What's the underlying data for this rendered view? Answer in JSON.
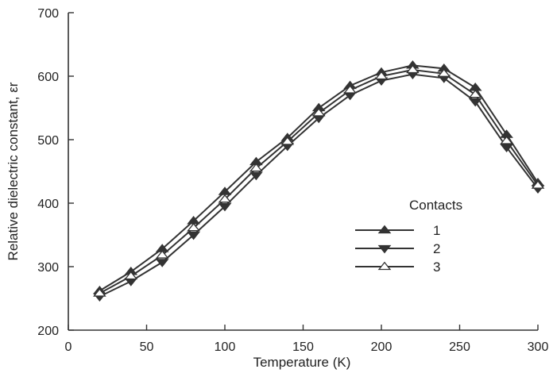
{
  "chart_data": {
    "type": "line",
    "title": "",
    "xlabel": "Temperature (K)",
    "ylabel": "Relative dielectric constant, εr",
    "xlim": [
      0,
      300
    ],
    "ylim": [
      200,
      700
    ],
    "x_ticks": [
      0,
      50,
      100,
      150,
      200,
      250,
      300
    ],
    "y_ticks": [
      200,
      300,
      400,
      500,
      600,
      700
    ],
    "x_tick_labels": [
      "0",
      "50",
      "100",
      "150",
      "200",
      "250",
      "300"
    ],
    "y_tick_labels": [
      "200",
      "300",
      "400",
      "500",
      "600",
      "700"
    ],
    "grid": false,
    "legend": {
      "title": "Contacts",
      "placement": "center-right"
    },
    "series": [
      {
        "name": "1",
        "marker": "triangle-up-filled",
        "color": "#333333",
        "x": [
          20,
          40,
          60,
          80,
          100,
          120,
          140,
          160,
          180,
          200,
          220,
          240,
          260,
          280,
          300
        ],
        "y": [
          262,
          292,
          328,
          372,
          418,
          465,
          503,
          550,
          585,
          606,
          617,
          612,
          582,
          508,
          432
        ]
      },
      {
        "name": "2",
        "marker": "triangle-down-filled",
        "color": "#333333",
        "x": [
          20,
          40,
          60,
          80,
          100,
          120,
          140,
          160,
          180,
          200,
          220,
          240,
          260,
          280,
          300
        ],
        "y": [
          253,
          277,
          307,
          350,
          395,
          444,
          490,
          534,
          570,
          593,
          603,
          597,
          560,
          488,
          423
        ]
      },
      {
        "name": "3",
        "marker": "triangle-up-open",
        "color": "#333333",
        "x": [
          20,
          40,
          60,
          80,
          100,
          120,
          140,
          160,
          180,
          200,
          220,
          240,
          260,
          280,
          300
        ],
        "y": [
          258,
          285,
          318,
          361,
          406,
          455,
          497,
          542,
          578,
          600,
          610,
          604,
          571,
          498,
          428
        ]
      }
    ]
  }
}
